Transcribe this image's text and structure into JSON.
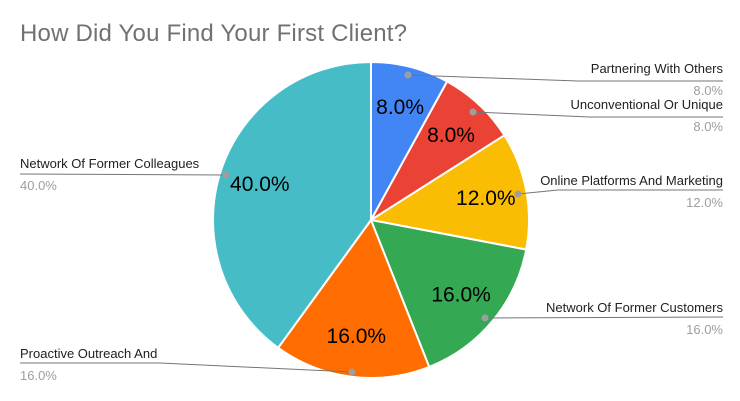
{
  "title": "How Did You Find Your First Client?",
  "chart_data": {
    "type": "pie",
    "title": "How Did You Find Your First Client?",
    "unit": "percent",
    "direction": "clockwise",
    "start_angle_deg": 0,
    "legend_position": "labeled-callouts",
    "slices": [
      {
        "label": "Partnering With Others",
        "value": 8.0,
        "pct_label": "8.0%",
        "color": "#4285F4"
      },
      {
        "label": "Unconventional Or Unique",
        "value": 8.0,
        "pct_label": "8.0%",
        "color": "#EA4335"
      },
      {
        "label": "Online Platforms And Marketing",
        "value": 12.0,
        "pct_label": "12.0%",
        "color": "#FBBC04"
      },
      {
        "label": "Network Of Former Customers",
        "value": 16.0,
        "pct_label": "16.0%",
        "color": "#34A853"
      },
      {
        "label": "Proactive Outreach And",
        "value": 16.0,
        "pct_label": "16.0%",
        "color": "#FF6D01"
      },
      {
        "label": "Network Of Former Colleagues",
        "value": 40.0,
        "pct_label": "40.0%",
        "color": "#46BDC6"
      }
    ]
  }
}
